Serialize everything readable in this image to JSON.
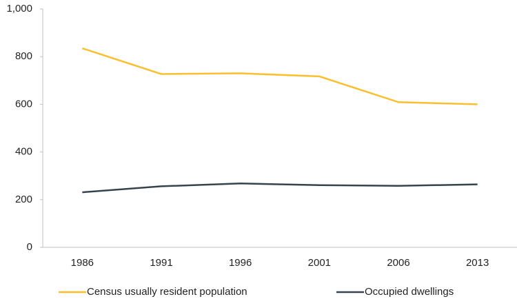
{
  "chart_data": {
    "type": "line",
    "categories": [
      "1986",
      "1991",
      "1996",
      "2001",
      "2006",
      "2013"
    ],
    "series": [
      {
        "name": "Census usually resident population",
        "color": "#fbbf2e",
        "values": [
          835,
          727,
          730,
          717,
          609,
          600
        ]
      },
      {
        "name": "Occupied dwellings",
        "color": "#36434e",
        "values": [
          231,
          256,
          268,
          261,
          258,
          264
        ]
      }
    ],
    "ylim": [
      0,
      1000
    ],
    "yticks": [
      0,
      200,
      400,
      600,
      800,
      {
        "value": 1000,
        "label": "1,000"
      }
    ],
    "grid": false,
    "legend": "bottom"
  }
}
